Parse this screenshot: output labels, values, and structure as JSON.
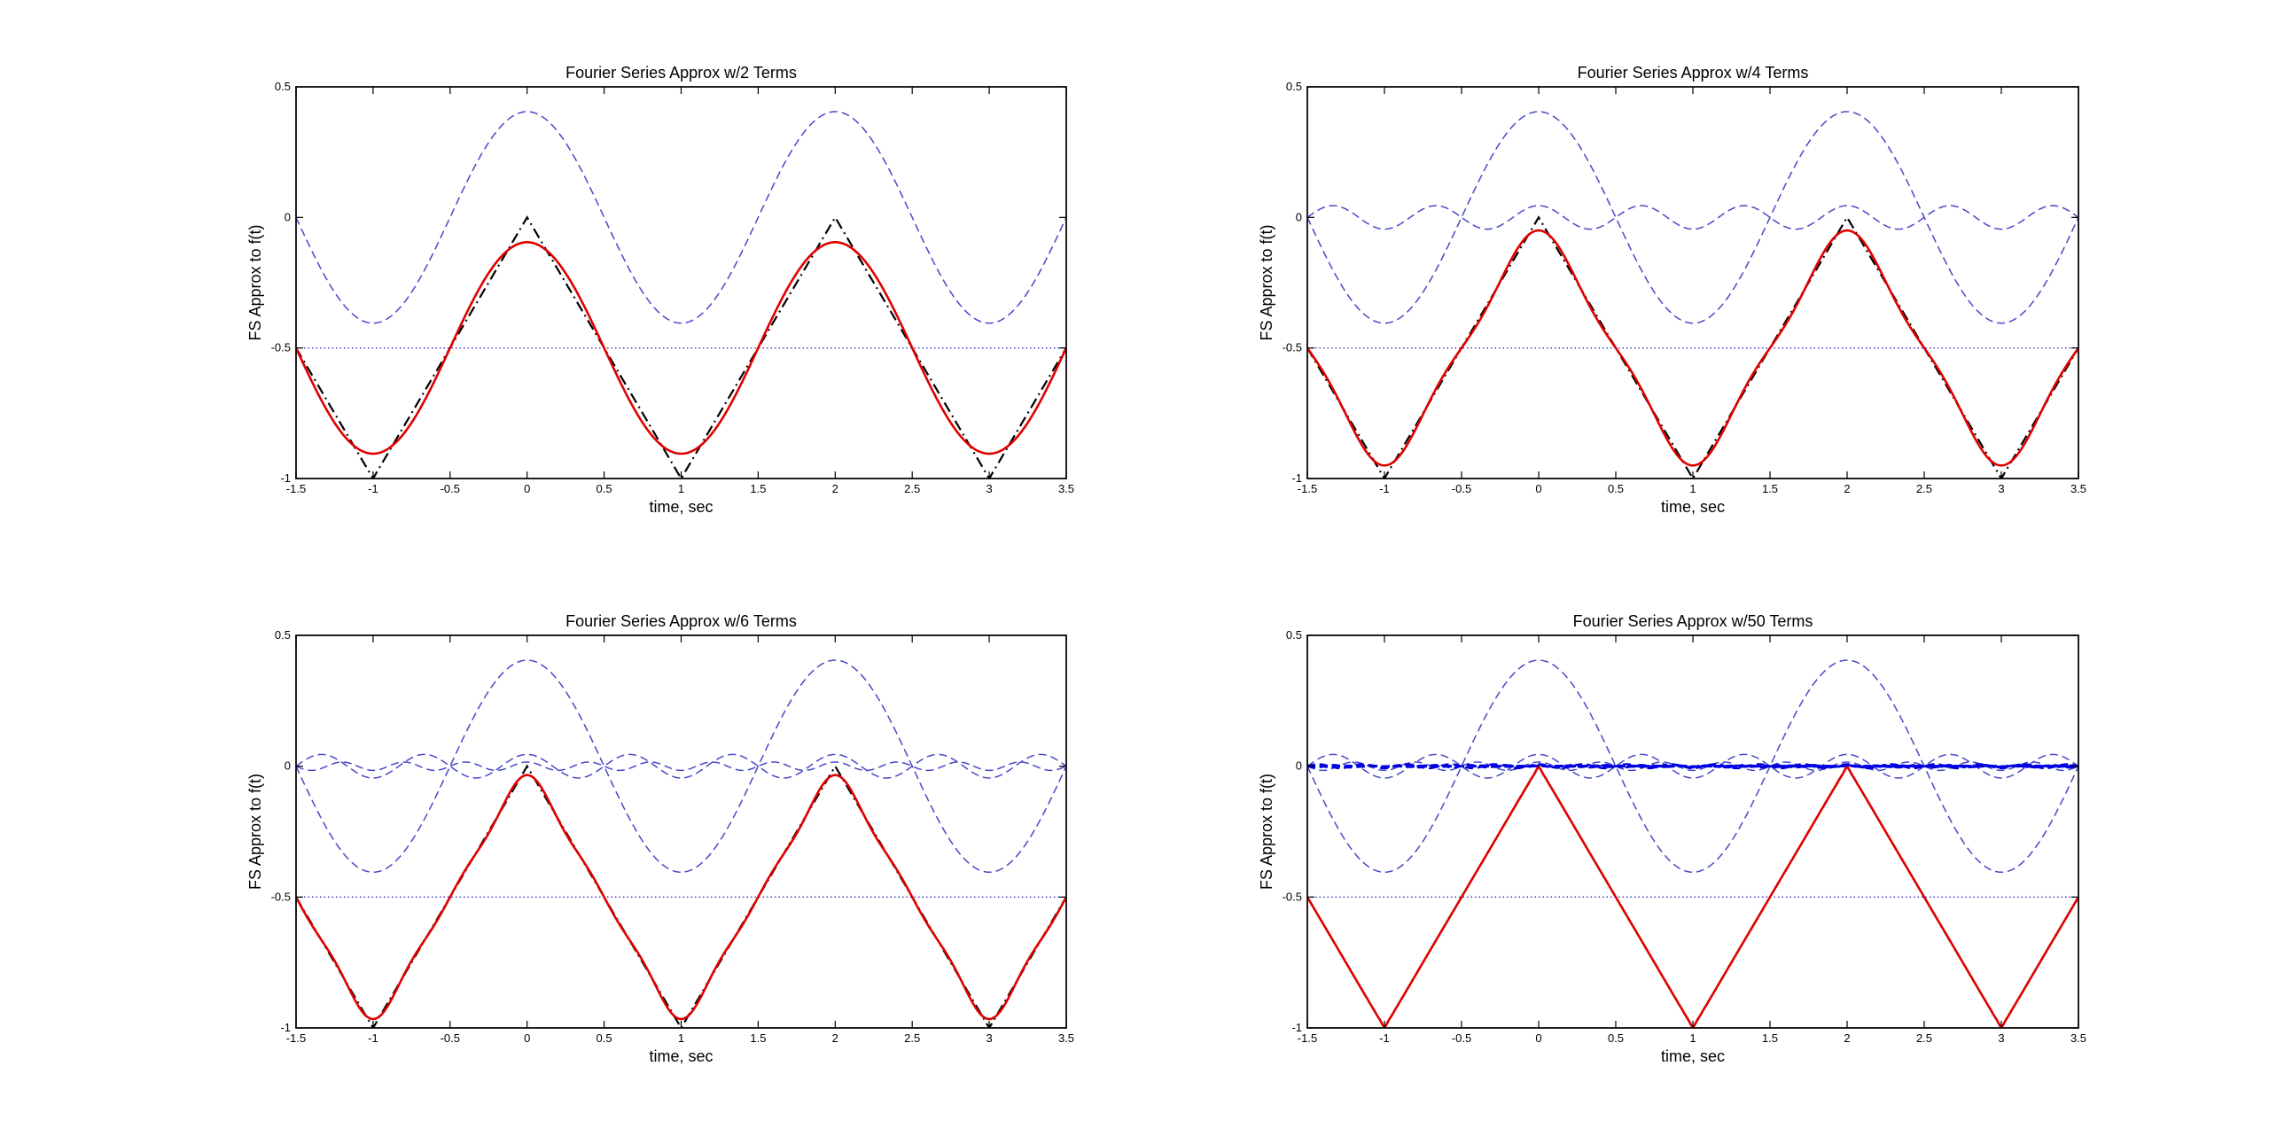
{
  "figure": {
    "background": "#ffffff",
    "colors": {
      "approximation": "#e00000",
      "original": "#000000",
      "harmonics": "#4848c8",
      "dc_level": "#3030c0",
      "dense_harmonics": "#0000e0"
    }
  },
  "chart_data": [
    {
      "type": "line",
      "title": "Fourier Series Approx w/2 Terms",
      "xlabel": "time, sec",
      "ylabel": "FS Approx to f(t)",
      "xlim": [
        -1.5,
        3.5
      ],
      "ylim": [
        -1,
        0.5
      ],
      "x_ticks": [
        "-1.5",
        "-1",
        "-0.5",
        "0",
        "0.5",
        "1",
        "1.5",
        "2",
        "2.5",
        "3",
        "3.5"
      ],
      "y_ticks": [
        "-1",
        "-0.5",
        "0",
        "0.5"
      ],
      "grid": false,
      "signal": {
        "kind": "triangle wave",
        "period": 2,
        "min": -1,
        "max": 0,
        "peaks_at": [
          0,
          2
        ],
        "troughs_at": [
          -1,
          1,
          3
        ]
      },
      "dc_component": -0.5,
      "harmonic_amplitudes": [
        0.405
      ],
      "approx_range": [
        -0.905,
        -0.095
      ]
    },
    {
      "type": "line",
      "title": "Fourier Series Approx w/4 Terms",
      "xlabel": "time, sec",
      "ylabel": "FS Approx to f(t)",
      "xlim": [
        -1.5,
        3.5
      ],
      "ylim": [
        -1,
        0.5
      ],
      "x_ticks": [
        "-1.5",
        "-1",
        "-0.5",
        "0",
        "0.5",
        "1",
        "1.5",
        "2",
        "2.5",
        "3",
        "3.5"
      ],
      "y_ticks": [
        "-1",
        "-0.5",
        "0",
        "0.5"
      ],
      "grid": false,
      "signal": {
        "kind": "triangle wave",
        "period": 2,
        "min": -1,
        "max": 0,
        "peaks_at": [
          0,
          2
        ],
        "troughs_at": [
          -1,
          1,
          3
        ]
      },
      "dc_component": -0.5,
      "harmonic_amplitudes": [
        0.405,
        0.045
      ],
      "approx_range": [
        -0.95,
        -0.05
      ]
    },
    {
      "type": "line",
      "title": "Fourier Series Approx w/6 Terms",
      "xlabel": "time, sec",
      "ylabel": "FS Approx to f(t)",
      "xlim": [
        -1.5,
        3.5
      ],
      "ylim": [
        -1,
        0.5
      ],
      "x_ticks": [
        "-1.5",
        "-1",
        "-0.5",
        "0",
        "0.5",
        "1",
        "1.5",
        "2",
        "2.5",
        "3",
        "3.5"
      ],
      "y_ticks": [
        "-1",
        "-0.5",
        "0",
        "0.5"
      ],
      "grid": false,
      "signal": {
        "kind": "triangle wave",
        "period": 2,
        "min": -1,
        "max": 0,
        "peaks_at": [
          0,
          2
        ],
        "troughs_at": [
          -1,
          1,
          3
        ]
      },
      "dc_component": -0.5,
      "harmonic_amplitudes": [
        0.405,
        0.045,
        0.016
      ],
      "approx_range": [
        -0.966,
        -0.034
      ]
    },
    {
      "type": "line",
      "title": "Fourier Series Approx w/50 Terms",
      "xlabel": "time, sec",
      "ylabel": "FS Approx to f(t)",
      "xlim": [
        -1.5,
        3.5
      ],
      "ylim": [
        -1,
        0.5
      ],
      "x_ticks": [
        "-1.5",
        "-1",
        "-0.5",
        "0",
        "0.5",
        "1",
        "1.5",
        "2",
        "2.5",
        "3",
        "3.5"
      ],
      "y_ticks": [
        "-1",
        "-0.5",
        "0",
        "0.5"
      ],
      "grid": false,
      "signal": {
        "kind": "triangle wave",
        "period": 2,
        "min": -1,
        "max": 0,
        "peaks_at": [
          0,
          2
        ],
        "troughs_at": [
          -1,
          1,
          3
        ]
      },
      "dc_component": -0.5,
      "harmonic_amplitudes": [
        0.405,
        0.045,
        0.016,
        0.008,
        0.005,
        0.0033,
        0.0024,
        0.0018,
        0.0014,
        0.0011,
        0.0009,
        0.00075,
        0.00064,
        0.00055,
        0.00048,
        0.00042,
        0.00037,
        0.00033,
        0.0003,
        0.00027,
        0.00025,
        0.00022,
        0.0002,
        0.00019,
        0.00017
      ],
      "approx_range": [
        -0.996,
        -0.004
      ]
    }
  ]
}
